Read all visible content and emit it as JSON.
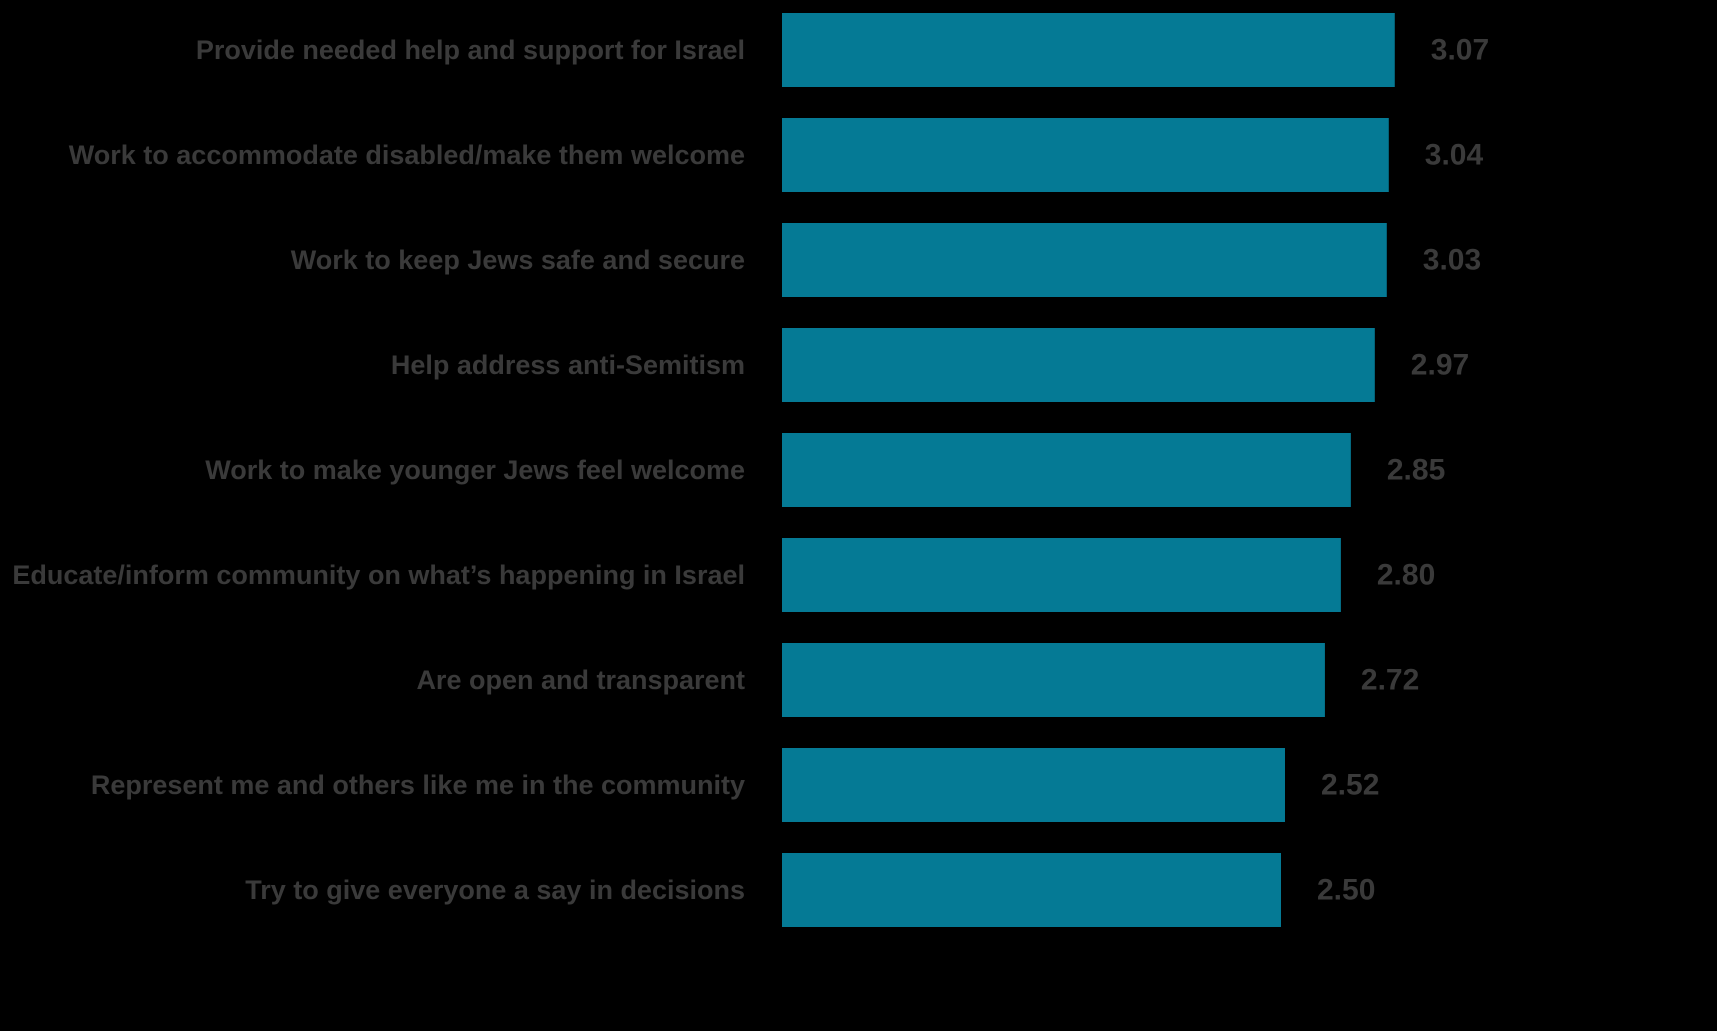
{
  "chart_data": {
    "type": "bar",
    "orientation": "horizontal",
    "categories": [
      "Provide needed help and support for Israel",
      "Work to accommodate disabled/make them welcome",
      "Work to keep Jews safe and secure",
      "Help address anti-Semitism",
      "Work to make younger Jews feel welcome",
      "Educate/inform community on what’s happening in Israel",
      "Are open and transparent",
      "Represent me and others like me in the community",
      "Try to give everyone a say in decisions"
    ],
    "values": [
      3.07,
      3.04,
      3.03,
      2.97,
      2.85,
      2.8,
      2.72,
      2.52,
      2.5
    ],
    "value_labels": [
      "3.07",
      "3.04",
      "3.03",
      "2.97",
      "2.85",
      "2.80",
      "2.72",
      "2.52",
      "2.50"
    ],
    "title": "",
    "xlabel": "",
    "ylabel": "",
    "xlim": [
      0,
      4
    ],
    "grid": false,
    "legend": "none",
    "colors": {
      "background": "#000000",
      "bar": "#057a95",
      "label": "#3a3a3a"
    }
  }
}
